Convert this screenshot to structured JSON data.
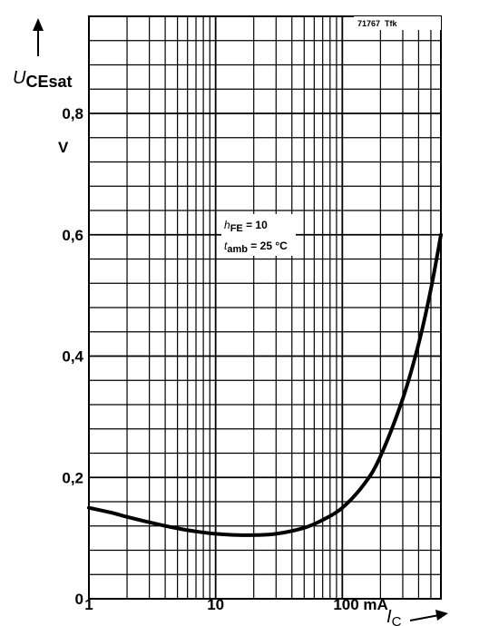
{
  "chart_data": {
    "type": "line",
    "figure_code": "71767  Tfk",
    "x_scale": "log",
    "xlim": [
      1,
      600
    ],
    "ylim": [
      0,
      0.96
    ],
    "grid": true,
    "y_axis_label": {
      "main": "U",
      "sub": "CEsat"
    },
    "y_unit": "V",
    "x_axis_label": {
      "main": "I",
      "sub": "C"
    },
    "x_ticks": [
      {
        "value": 1,
        "label": "1"
      },
      {
        "value": 10,
        "label": "10"
      },
      {
        "value": 100,
        "label": "100 mA"
      }
    ],
    "y_ticks": [
      {
        "value": 0,
        "label": "0"
      },
      {
        "value": 0.2,
        "label": "0,2"
      },
      {
        "value": 0.4,
        "label": "0,4"
      },
      {
        "value": 0.6,
        "label": "0,6"
      },
      {
        "value": 0.8,
        "label": "0,8"
      }
    ],
    "annotations": [
      {
        "main": "h",
        "sub": "FE",
        "rest": " = 10"
      },
      {
        "main": "t",
        "sub": "amb",
        "rest": " = 25 °C"
      }
    ],
    "series": [
      {
        "x": [
          1,
          1.5,
          2,
          3,
          5,
          7,
          10,
          15,
          20,
          30,
          50,
          70,
          100,
          150,
          200,
          300,
          400,
          500,
          600
        ],
        "y": [
          0.15,
          0.142,
          0.135,
          0.126,
          0.116,
          0.111,
          0.107,
          0.105,
          0.105,
          0.107,
          0.117,
          0.13,
          0.15,
          0.19,
          0.235,
          0.33,
          0.42,
          0.51,
          0.6
        ]
      }
    ]
  }
}
